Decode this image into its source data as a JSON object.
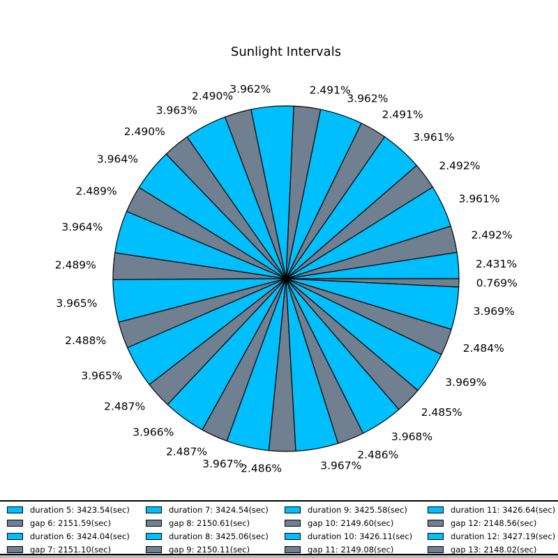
{
  "chart_data": {
    "type": "pie",
    "title": "Sunlight Intervals",
    "start_angle_deg": 0,
    "direction": "counterclockwise",
    "colors": {
      "duration": "#00bfff",
      "gap": "#708090",
      "edge": "#000000"
    },
    "slices": [
      {
        "pct": 2.431,
        "label": "2.431%",
        "kind": "duration"
      },
      {
        "pct": 2.492,
        "label": "2.492%",
        "kind": "gap"
      },
      {
        "pct": 3.961,
        "label": "3.961%",
        "kind": "duration"
      },
      {
        "pct": 2.492,
        "label": "2.492%",
        "kind": "gap"
      },
      {
        "pct": 3.961,
        "label": "3.961%",
        "kind": "duration"
      },
      {
        "pct": 2.491,
        "label": "2.491%",
        "kind": "gap"
      },
      {
        "pct": 3.962,
        "label": "3.962%",
        "kind": "duration"
      },
      {
        "pct": 2.491,
        "label": "2.491%",
        "kind": "gap"
      },
      {
        "pct": 3.962,
        "label": "3.962%",
        "kind": "duration"
      },
      {
        "pct": 2.49,
        "label": "2.490%",
        "kind": "gap"
      },
      {
        "pct": 3.963,
        "label": "3.963%",
        "kind": "duration"
      },
      {
        "pct": 2.49,
        "label": "2.490%",
        "kind": "gap"
      },
      {
        "pct": 3.964,
        "label": "3.964%",
        "kind": "duration"
      },
      {
        "pct": 2.489,
        "label": "2.489%",
        "kind": "gap"
      },
      {
        "pct": 3.964,
        "label": "3.964%",
        "kind": "duration"
      },
      {
        "pct": 2.489,
        "label": "2.489%",
        "kind": "gap"
      },
      {
        "pct": 3.965,
        "label": "3.965%",
        "kind": "duration"
      },
      {
        "pct": 2.488,
        "label": "2.488%",
        "kind": "gap"
      },
      {
        "pct": 3.965,
        "label": "3.965%",
        "kind": "duration"
      },
      {
        "pct": 2.487,
        "label": "2.487%",
        "kind": "gap"
      },
      {
        "pct": 3.966,
        "label": "3.966%",
        "kind": "duration"
      },
      {
        "pct": 2.487,
        "label": "2.487%",
        "kind": "gap"
      },
      {
        "pct": 3.967,
        "label": "3.967%",
        "kind": "duration"
      },
      {
        "pct": 2.486,
        "label": "2.486%",
        "kind": "gap"
      },
      {
        "pct": 3.967,
        "label": "3.967%",
        "kind": "duration"
      },
      {
        "pct": 2.486,
        "label": "2.486%",
        "kind": "gap"
      },
      {
        "pct": 3.968,
        "label": "3.968%",
        "kind": "duration"
      },
      {
        "pct": 2.485,
        "label": "2.485%",
        "kind": "gap"
      },
      {
        "pct": 3.969,
        "label": "3.969%",
        "kind": "duration"
      },
      {
        "pct": 2.484,
        "label": "2.484%",
        "kind": "gap"
      },
      {
        "pct": 3.969,
        "label": "3.969%",
        "kind": "duration"
      },
      {
        "pct": 0.769,
        "label": "0.769%",
        "kind": "gap"
      }
    ],
    "legend": {
      "position": "bottom",
      "columns": 4,
      "entries": [
        {
          "label": "duration 5: 3423.54(sec)",
          "kind": "duration"
        },
        {
          "label": "gap 6: 2151.59(sec)",
          "kind": "gap"
        },
        {
          "label": "duration 6: 3424.04(sec)",
          "kind": "duration"
        },
        {
          "label": "gap 7: 2151.10(sec)",
          "kind": "gap"
        },
        {
          "label": "duration 7: 3424.54(sec)",
          "kind": "duration"
        },
        {
          "label": "gap 8: 2150.61(sec)",
          "kind": "gap"
        },
        {
          "label": "duration 8: 3425.06(sec)",
          "kind": "duration"
        },
        {
          "label": "gap 9: 2150.11(sec)",
          "kind": "gap"
        },
        {
          "label": "duration 9: 3425.58(sec)",
          "kind": "duration"
        },
        {
          "label": "gap 10: 2149.60(sec)",
          "kind": "gap"
        },
        {
          "label": "duration 10: 3426.11(sec)",
          "kind": "duration"
        },
        {
          "label": "gap 11: 2149.08(sec)",
          "kind": "gap"
        },
        {
          "label": "duration 11: 3426.64(sec)",
          "kind": "duration"
        },
        {
          "label": "gap 12: 2148.56(sec)",
          "kind": "gap"
        },
        {
          "label": "duration 12: 3427.19(sec)",
          "kind": "duration"
        },
        {
          "label": "gap 13: 2148.02(sec)",
          "kind": "gap"
        }
      ]
    }
  }
}
